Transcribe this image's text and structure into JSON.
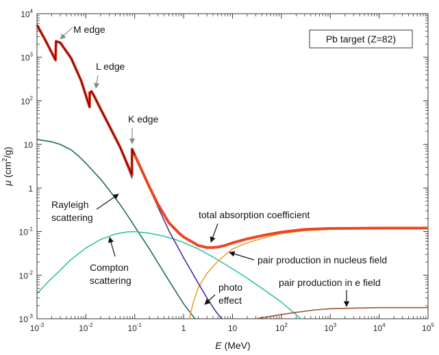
{
  "chart_data": {
    "type": "line",
    "title": "",
    "x_scale": "log",
    "y_scale": "log",
    "xlim": [
      0.001,
      100000
    ],
    "ylim": [
      0.001,
      10000
    ],
    "xlabel": {
      "symbol": "E",
      "unit": "(MeV)"
    },
    "ylabel": {
      "symbol": "μ",
      "unit_prefix": "(cm",
      "unit_sup": "2",
      "unit_suffix": "/g)"
    },
    "x_ticks": [
      {
        "base": "10",
        "exp": "-3"
      },
      {
        "base": "10",
        "exp": "-2"
      },
      {
        "base": "10",
        "exp": "-1"
      },
      {
        "base": "1",
        "exp": ""
      },
      {
        "base": "10",
        "exp": ""
      },
      {
        "base": "10",
        "exp": "2"
      },
      {
        "base": "10",
        "exp": "3"
      },
      {
        "base": "10",
        "exp": "4"
      },
      {
        "base": "10",
        "exp": "5"
      }
    ],
    "y_ticks": [
      {
        "base": "10",
        "exp": "-3"
      },
      {
        "base": "10",
        "exp": "-2"
      },
      {
        "base": "10",
        "exp": "-1"
      },
      {
        "base": "1",
        "exp": ""
      },
      {
        "base": "10",
        "exp": ""
      },
      {
        "base": "10",
        "exp": "2"
      },
      {
        "base": "10",
        "exp": "3"
      },
      {
        "base": "10",
        "exp": "4"
      }
    ],
    "legend_box": "Pb target (Z=82)",
    "series": [
      {
        "key": "rayleigh",
        "color": "#1e6a50",
        "points": [
          [
            0.001,
            13
          ],
          [
            0.002,
            11.5
          ],
          [
            0.003,
            10
          ],
          [
            0.005,
            7.5
          ],
          [
            0.007,
            5.5
          ],
          [
            0.01,
            3.7
          ],
          [
            0.02,
            1.6
          ],
          [
            0.03,
            0.9
          ],
          [
            0.05,
            0.42
          ],
          [
            0.07,
            0.24
          ],
          [
            0.1,
            0.13
          ],
          [
            0.2,
            0.04
          ],
          [
            0.3,
            0.019
          ],
          [
            0.5,
            0.0075
          ],
          [
            1,
            0.0022
          ],
          [
            1.7,
            0.001
          ]
        ]
      },
      {
        "key": "compton",
        "color": "#2ec4a0",
        "points": [
          [
            0.001,
            0.0038
          ],
          [
            0.002,
            0.0085
          ],
          [
            0.003,
            0.013
          ],
          [
            0.005,
            0.023
          ],
          [
            0.01,
            0.042
          ],
          [
            0.02,
            0.066
          ],
          [
            0.04,
            0.088
          ],
          [
            0.07,
            0.098
          ],
          [
            0.1,
            0.1
          ],
          [
            0.2,
            0.092
          ],
          [
            0.4,
            0.078
          ],
          [
            0.7,
            0.065
          ],
          [
            1,
            0.056
          ],
          [
            2,
            0.04
          ],
          [
            4,
            0.026
          ],
          [
            10,
            0.014
          ],
          [
            20,
            0.0085
          ],
          [
            50,
            0.0042
          ],
          [
            100,
            0.0024
          ],
          [
            250,
            0.001
          ]
        ]
      },
      {
        "key": "photo",
        "color": "#4b2a8c",
        "points": [
          [
            0.001,
            5500
          ],
          [
            0.0015,
            2400
          ],
          [
            0.0024,
            850
          ],
          [
            0.00245,
            2300
          ],
          [
            0.003,
            2100
          ],
          [
            0.005,
            930
          ],
          [
            0.008,
            280
          ],
          [
            0.0119,
            70
          ],
          [
            0.012,
            150
          ],
          [
            0.013,
            160
          ],
          [
            0.015,
            120
          ],
          [
            0.02,
            62
          ],
          [
            0.03,
            25
          ],
          [
            0.05,
            8
          ],
          [
            0.0875,
            1.7
          ],
          [
            0.088,
            7.5
          ],
          [
            0.1,
            5.5
          ],
          [
            0.2,
            0.98
          ],
          [
            0.3,
            0.36
          ],
          [
            0.5,
            0.105
          ],
          [
            1,
            0.025
          ],
          [
            2,
            0.0065
          ],
          [
            3,
            0.003
          ],
          [
            4.5,
            0.0015
          ],
          [
            6,
            0.001
          ]
        ]
      },
      {
        "key": "pair_nucleus",
        "color": "#f0a030",
        "points": [
          [
            1.3,
            0.001
          ],
          [
            1.6,
            0.0025
          ],
          [
            2,
            0.0052
          ],
          [
            3,
            0.011
          ],
          [
            5,
            0.021
          ],
          [
            10,
            0.04
          ],
          [
            20,
            0.055
          ],
          [
            50,
            0.075
          ],
          [
            100,
            0.09
          ],
          [
            300,
            0.105
          ],
          [
            1000,
            0.113
          ],
          [
            10000,
            0.118
          ],
          [
            100000,
            0.12
          ]
        ]
      },
      {
        "key": "pair_electron",
        "color": "#a0522d",
        "points": [
          [
            30,
            0.001
          ],
          [
            50,
            0.0011
          ],
          [
            100,
            0.00125
          ],
          [
            200,
            0.0014
          ],
          [
            500,
            0.0016
          ],
          [
            1000,
            0.0017
          ],
          [
            10000,
            0.0018
          ],
          [
            100000,
            0.0018
          ]
        ]
      },
      {
        "key": "total",
        "color": "#ee4422",
        "inner_color": "#7a0010",
        "inner_until": 0.1,
        "points": [
          [
            0.001,
            5500
          ],
          [
            0.0015,
            2400
          ],
          [
            0.0024,
            860
          ],
          [
            0.00245,
            2320
          ],
          [
            0.003,
            2150
          ],
          [
            0.005,
            950
          ],
          [
            0.008,
            290
          ],
          [
            0.0119,
            72
          ],
          [
            0.012,
            155
          ],
          [
            0.013,
            165
          ],
          [
            0.015,
            125
          ],
          [
            0.02,
            65
          ],
          [
            0.03,
            27
          ],
          [
            0.05,
            8.7
          ],
          [
            0.0875,
            2
          ],
          [
            0.088,
            7.8
          ],
          [
            0.1,
            5.7
          ],
          [
            0.2,
            1.05
          ],
          [
            0.3,
            0.42
          ],
          [
            0.5,
            0.16
          ],
          [
            0.8,
            0.093
          ],
          [
            1,
            0.075
          ],
          [
            2,
            0.048
          ],
          [
            3,
            0.043
          ],
          [
            4,
            0.043
          ],
          [
            5,
            0.044
          ],
          [
            7,
            0.048
          ],
          [
            10,
            0.055
          ],
          [
            20,
            0.068
          ],
          [
            50,
            0.085
          ],
          [
            100,
            0.097
          ],
          [
            300,
            0.112
          ],
          [
            1000,
            0.118
          ],
          [
            10000,
            0.12
          ],
          [
            100000,
            0.12
          ]
        ]
      }
    ],
    "annotations": [
      {
        "key": "m_edge",
        "text": "M edge"
      },
      {
        "key": "l_edge",
        "text": "L edge"
      },
      {
        "key": "k_edge",
        "text": "K edge"
      },
      {
        "key": "rayleigh",
        "text": [
          "Rayleigh",
          "scattering"
        ]
      },
      {
        "key": "compton",
        "text": [
          "Compton",
          "scattering"
        ]
      },
      {
        "key": "total",
        "text": "total absorption coefficient"
      },
      {
        "key": "pair_nucleus",
        "text": "pair production in nucleus field"
      },
      {
        "key": "pair_electron",
        "text": "pair production in e field"
      },
      {
        "key": "photo",
        "text": [
          "photo",
          "effect"
        ]
      }
    ]
  }
}
